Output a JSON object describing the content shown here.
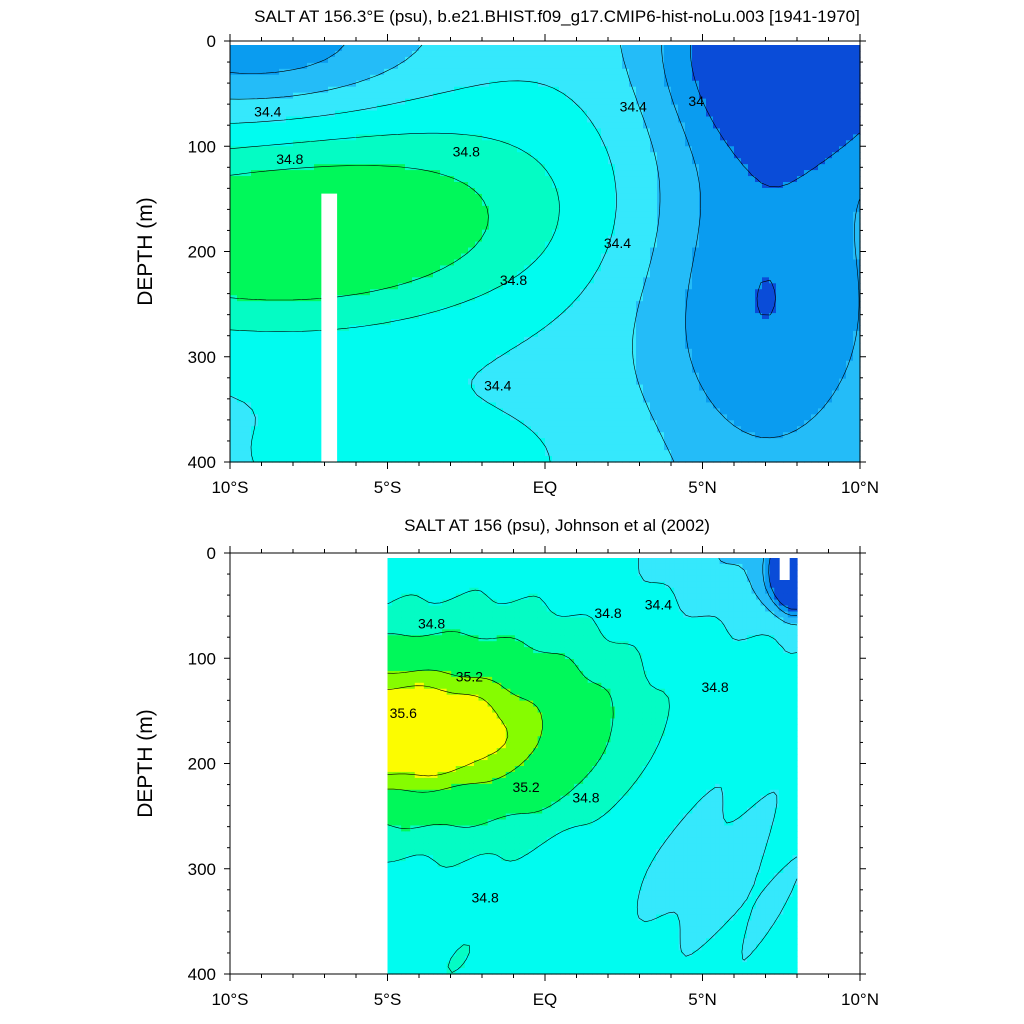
{
  "chart_data": [
    {
      "type": "contour",
      "title": "SALT AT 156.3°E (psu), b.e21.BHIST.f09_g17.CMIP6-hist-noLu.003 [1941-1970]",
      "ylabel": "DEPTH (m)",
      "xlim": [
        -10,
        10
      ],
      "ylim": [
        400,
        0
      ],
      "x_tick_labels": [
        "10°S",
        "5°S",
        "EQ",
        "5°N",
        "10°N"
      ],
      "y_tick_labels": [
        "0",
        "100",
        "200",
        "300",
        "400"
      ],
      "contour_interval": 0.2,
      "fill_levels": [
        {
          "value": 33.8,
          "color": "#0a4cd8"
        },
        {
          "value": 34.0,
          "color": "#0a9cf0"
        },
        {
          "value": 34.2,
          "color": "#24bcf8"
        },
        {
          "value": 34.4,
          "color": "#35e8fc"
        },
        {
          "value": 34.6,
          "color": "#00fcf0"
        },
        {
          "value": 34.8,
          "color": "#04fcc4"
        },
        {
          "value": 35.0,
          "color": "#00f85a"
        }
      ],
      "contour_labels": [
        {
          "text": "34.4",
          "x": -8.8,
          "y": 70
        },
        {
          "text": "34.8",
          "x": -8.1,
          "y": 115
        },
        {
          "text": "34.8",
          "x": -2.5,
          "y": 108
        },
        {
          "text": "34.4",
          "x": 2.8,
          "y": 65
        },
        {
          "text": "34",
          "x": 4.8,
          "y": 60
        },
        {
          "text": "34.4",
          "x": 2.3,
          "y": 195
        },
        {
          "text": "34.8",
          "x": -1.0,
          "y": 230
        },
        {
          "text": "34.4",
          "x": -1.5,
          "y": 330
        }
      ],
      "missing_data": [
        {
          "x_from": -7.1,
          "x_to": -6.6,
          "y_from": 145,
          "y_to": 400
        }
      ]
    },
    {
      "type": "contour",
      "title": "SALT AT 156 (psu), Johnson et al (2002)",
      "ylabel": "DEPTH (m)",
      "xlim": [
        -10,
        10
      ],
      "ylim": [
        400,
        0
      ],
      "data_x_range": [
        -5,
        8
      ],
      "x_tick_labels": [
        "10°S",
        "5°S",
        "EQ",
        "5°N",
        "10°N"
      ],
      "y_tick_labels": [
        "0",
        "100",
        "200",
        "300",
        "400"
      ],
      "contour_interval": 0.2,
      "fill_levels": [
        {
          "value": 33.8,
          "color": "#0a4cd8"
        },
        {
          "value": 34.0,
          "color": "#0a9cf0"
        },
        {
          "value": 34.2,
          "color": "#24bcf8"
        },
        {
          "value": 34.4,
          "color": "#35e8fc"
        },
        {
          "value": 34.6,
          "color": "#00fcf0"
        },
        {
          "value": 34.8,
          "color": "#04fcc4"
        },
        {
          "value": 35.0,
          "color": "#00f85a"
        },
        {
          "value": 35.4,
          "color": "#86fc00"
        },
        {
          "value": 35.6,
          "color": "#fcfc00"
        }
      ],
      "contour_labels": [
        {
          "text": "34.8",
          "x": -3.6,
          "y": 70
        },
        {
          "text": "35.2",
          "x": -2.4,
          "y": 120
        },
        {
          "text": "35.6",
          "x": -4.5,
          "y": 155
        },
        {
          "text": "35.2",
          "x": -0.6,
          "y": 225
        },
        {
          "text": "34.8",
          "x": 1.3,
          "y": 235
        },
        {
          "text": "34.8",
          "x": 2.0,
          "y": 60
        },
        {
          "text": "34.4",
          "x": 3.6,
          "y": 52
        },
        {
          "text": "34.8",
          "x": 5.4,
          "y": 130
        },
        {
          "text": "34.8",
          "x": -1.9,
          "y": 330
        }
      ]
    }
  ]
}
